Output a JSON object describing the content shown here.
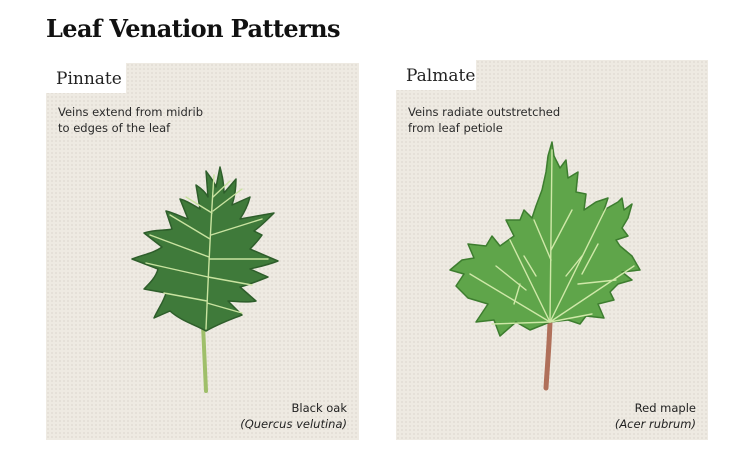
{
  "title": "Leaf Venation Patterns",
  "panels": [
    {
      "label": "Pinnate",
      "description_line1": "Veins extend from midrib",
      "description_line2": "to edges of the leaf",
      "common_name": "Black oak",
      "scientific_name": "(Quercus velutina)",
      "leaf_icon": "oak-leaf-icon"
    },
    {
      "label": "Palmate",
      "description_line1": "Veins radiate outstretched",
      "description_line2": "from leaf petiole",
      "common_name": "Red maple",
      "scientific_name": "(Acer rubrum)",
      "leaf_icon": "maple-leaf-icon"
    }
  ],
  "colors": {
    "card_background": "#eeeae2",
    "oak_leaf": "#3f7a3a",
    "oak_vein": "#c9e3a0",
    "maple_leaf": "#5fa54a",
    "maple_vein": "#cfe8a8",
    "maple_petiole": "#b0705a"
  }
}
